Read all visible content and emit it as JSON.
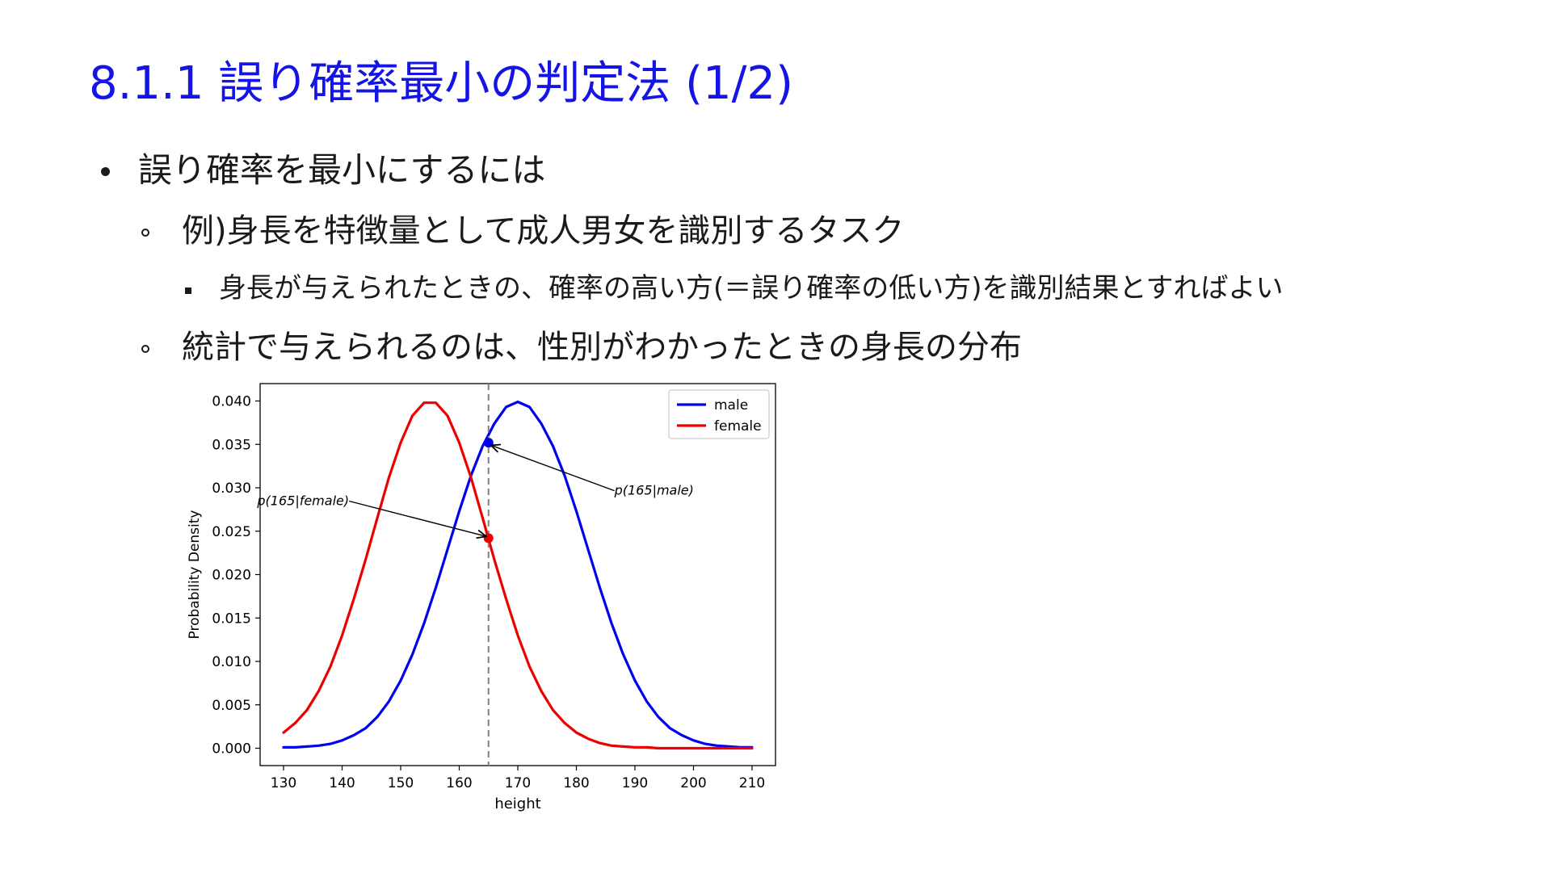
{
  "slide": {
    "title": "8.1.1 誤り確率最小の判定法 (1/2)",
    "bullets": [
      {
        "level": 1,
        "text": "誤り確率を最小にするには"
      },
      {
        "level": 2,
        "text": "例)身長を特徴量として成人男女を識別するタスク"
      },
      {
        "level": 3,
        "text": "身長が与えられたときの、確率の高い方(＝誤り確率の低い方)を識別結果とすればよい"
      },
      {
        "level": 2,
        "text": "統計で与えられるのは、性別がわかったときの身長の分布"
      }
    ]
  },
  "chart_data": {
    "type": "line",
    "title": "",
    "xlabel": "height",
    "ylabel": "Probability Density",
    "xlim": [
      126,
      214
    ],
    "ylim": [
      -0.002,
      0.042
    ],
    "xticks": [
      130,
      140,
      150,
      160,
      170,
      180,
      190,
      200,
      210
    ],
    "yticks": [
      0.0,
      0.005,
      0.01,
      0.015,
      0.02,
      0.025,
      0.03,
      0.035,
      0.04
    ],
    "ytick_labels": [
      "0.000",
      "0.005",
      "0.010",
      "0.015",
      "0.020",
      "0.025",
      "0.030",
      "0.035",
      "0.040"
    ],
    "grid": false,
    "legend_position": "top-right",
    "series": [
      {
        "name": "male",
        "color": "#0000ee",
        "x": [
          130,
          132,
          134,
          136,
          138,
          140,
          142,
          144,
          146,
          148,
          150,
          152,
          154,
          156,
          158,
          160,
          162,
          164,
          166,
          168,
          170,
          172,
          174,
          176,
          178,
          180,
          182,
          184,
          186,
          188,
          190,
          192,
          194,
          196,
          198,
          200,
          202,
          204,
          206,
          208,
          210
        ],
        "y": [
          0.0001,
          0.0001,
          0.0002,
          0.0003,
          0.0005,
          0.0009,
          0.0015,
          0.0023,
          0.0036,
          0.0054,
          0.0078,
          0.0108,
          0.0144,
          0.0185,
          0.0229,
          0.0273,
          0.0314,
          0.0348,
          0.0374,
          0.0393,
          0.0399,
          0.0393,
          0.0374,
          0.0348,
          0.0314,
          0.0273,
          0.0229,
          0.0185,
          0.0144,
          0.0108,
          0.0078,
          0.0054,
          0.0036,
          0.0023,
          0.0015,
          0.0009,
          0.0005,
          0.0003,
          0.0002,
          0.0001,
          0.0001
        ]
      },
      {
        "name": "female",
        "color": "#ee0000",
        "x": [
          130,
          132,
          134,
          136,
          138,
          140,
          142,
          144,
          146,
          148,
          150,
          152,
          154,
          156,
          158,
          160,
          162,
          164,
          166,
          168,
          170,
          172,
          174,
          176,
          178,
          180,
          182,
          184,
          186,
          188,
          190,
          192,
          194,
          196,
          198,
          200,
          202,
          204,
          206,
          208,
          210
        ],
        "y": [
          0.0018,
          0.0029,
          0.0044,
          0.0066,
          0.0094,
          0.013,
          0.0172,
          0.0217,
          0.0265,
          0.0312,
          0.0352,
          0.0383,
          0.0398,
          0.0398,
          0.0383,
          0.0352,
          0.0312,
          0.0265,
          0.0217,
          0.0172,
          0.013,
          0.0094,
          0.0066,
          0.0044,
          0.0029,
          0.0018,
          0.0011,
          0.0006,
          0.0003,
          0.0002,
          0.0001,
          0.0001,
          0.0,
          0.0,
          0.0,
          0.0,
          0.0,
          0.0,
          0.0,
          0.0,
          0.0
        ]
      }
    ],
    "vline": {
      "x": 165,
      "color": "#808080",
      "style": "dashed"
    },
    "markers": [
      {
        "x": 165,
        "y": 0.0352,
        "color": "#0000ee"
      },
      {
        "x": 165,
        "y": 0.0242,
        "color": "#ee0000"
      }
    ],
    "annotations": [
      {
        "text": "p(165|male)",
        "text_x": 186.5,
        "text_y": 0.0292,
        "target_x": 165.4,
        "target_y": 0.0349
      },
      {
        "text": "p(165|female)",
        "text_x": 125.5,
        "text_y": 0.028,
        "target_x": 164.6,
        "target_y": 0.0244
      }
    ]
  }
}
